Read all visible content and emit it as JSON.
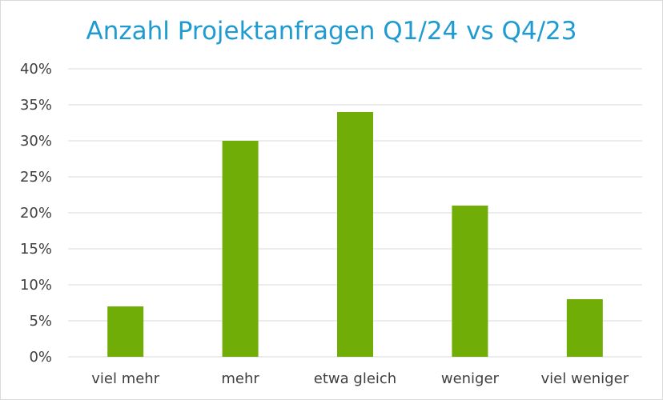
{
  "chart_data": {
    "type": "bar",
    "title": "Anzahl Projektanfragen Q1/24 vs Q4/23",
    "xlabel": "",
    "ylabel": "",
    "categories": [
      "viel mehr",
      "mehr",
      "etwa gleich",
      "weniger",
      "viel weniger"
    ],
    "values": [
      7,
      30,
      34,
      21,
      8
    ],
    "value_unit": "%",
    "ylim": [
      0,
      40
    ],
    "y_ticks": [
      0,
      5,
      10,
      15,
      20,
      25,
      30,
      35,
      40
    ],
    "y_tick_labels": [
      "0%",
      "5%",
      "10%",
      "15%",
      "20%",
      "25%",
      "30%",
      "35%",
      "40%"
    ],
    "grid": true,
    "legend": "none",
    "colors": {
      "bar": "#70ad07",
      "grid": "#d9d9d9",
      "title": "#1f9bd1",
      "text": "#404040"
    }
  }
}
